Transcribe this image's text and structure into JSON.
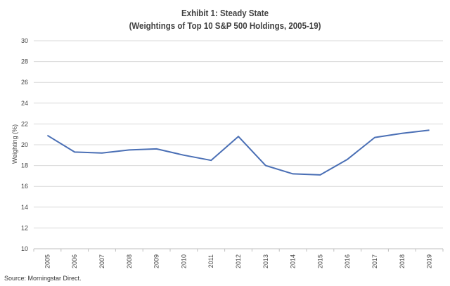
{
  "header": {
    "title": "Exhibit 1: Steady State",
    "subtitle": "(Weightings of Top 10 S&P 500 Holdings, 2005-19)"
  },
  "footer": {
    "source": "Source: Morningstar Direct."
  },
  "colors": {
    "line": "#4a6fb5",
    "grid": "#d9d9d9",
    "axis": "#bfbfbf"
  },
  "chart_data": {
    "type": "line",
    "title": "Exhibit 1: Steady State",
    "subtitle": "(Weightings of Top 10 S&P 500 Holdings, 2005-19)",
    "xlabel": "",
    "ylabel": "Weighting (%)",
    "ylim": [
      10,
      30
    ],
    "yticks": [
      10,
      12,
      14,
      16,
      18,
      20,
      22,
      24,
      26,
      28,
      30
    ],
    "grid": true,
    "legend": "none",
    "categories": [
      "2005",
      "2006",
      "2007",
      "2008",
      "2009",
      "2010",
      "2011",
      "2012",
      "2013",
      "2014",
      "2015",
      "2016",
      "2017",
      "2018",
      "2019"
    ],
    "series": [
      {
        "name": "Weighting (%)",
        "values": [
          20.9,
          19.3,
          19.2,
          19.5,
          19.6,
          19.0,
          18.5,
          20.8,
          18.0,
          17.2,
          17.1,
          18.6,
          20.7,
          21.1,
          21.4
        ]
      }
    ]
  }
}
